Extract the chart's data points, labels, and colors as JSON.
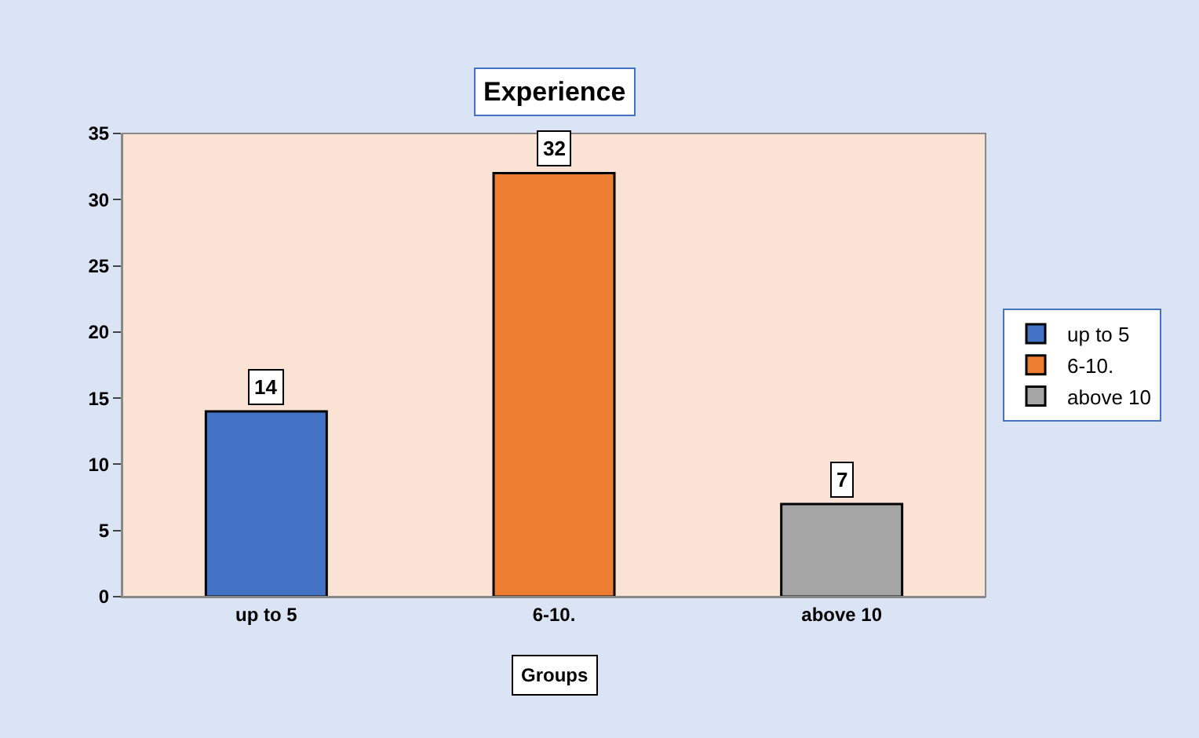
{
  "chart_data": {
    "type": "bar",
    "title": "Experience",
    "xlabel": "Groups",
    "categories": [
      "up to 5",
      "6-10.",
      "above 10"
    ],
    "series": [
      {
        "name": "up to 5",
        "color": "#4472c4",
        "values": [
          14,
          null,
          null
        ]
      },
      {
        "name": "6-10.",
        "color": "#ed7d31",
        "values": [
          null,
          32,
          null
        ]
      },
      {
        "name": "above 10",
        "color": "#a5a5a5",
        "values": [
          null,
          null,
          7
        ]
      }
    ],
    "ylim": [
      0,
      35
    ],
    "yticks": [
      0,
      5,
      10,
      15,
      20,
      25,
      30,
      35
    ],
    "grid": false,
    "legend": "right",
    "data_labels": true
  }
}
